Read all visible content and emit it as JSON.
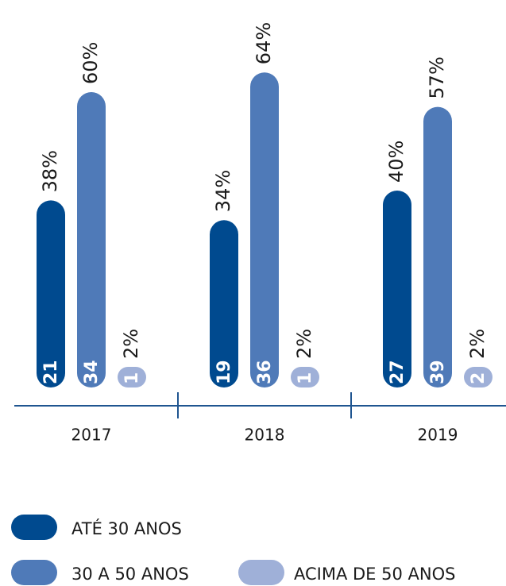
{
  "chart_data": {
    "type": "bar",
    "categories": [
      "2017",
      "2018",
      "2019"
    ],
    "series": [
      {
        "name": "ATÉ 30 ANOS",
        "color": "#004a8f",
        "values": [
          38,
          34,
          40
        ],
        "value_labels": [
          "38%",
          "34%",
          "40%"
        ],
        "counts": [
          21,
          19,
          27
        ]
      },
      {
        "name": "30 A 50 ANOS",
        "color": "#4f7ab8",
        "values": [
          60,
          64,
          57
        ],
        "value_labels": [
          "60%",
          "64%",
          "57%"
        ],
        "counts": [
          34,
          36,
          39
        ]
      },
      {
        "name": "ACIMA DE 50 ANOS",
        "color": "#9fb0d8",
        "values": [
          2,
          2,
          2
        ],
        "value_labels": [
          "2%",
          "2%",
          "2%"
        ],
        "counts": [
          1,
          1,
          2
        ]
      }
    ]
  }
}
